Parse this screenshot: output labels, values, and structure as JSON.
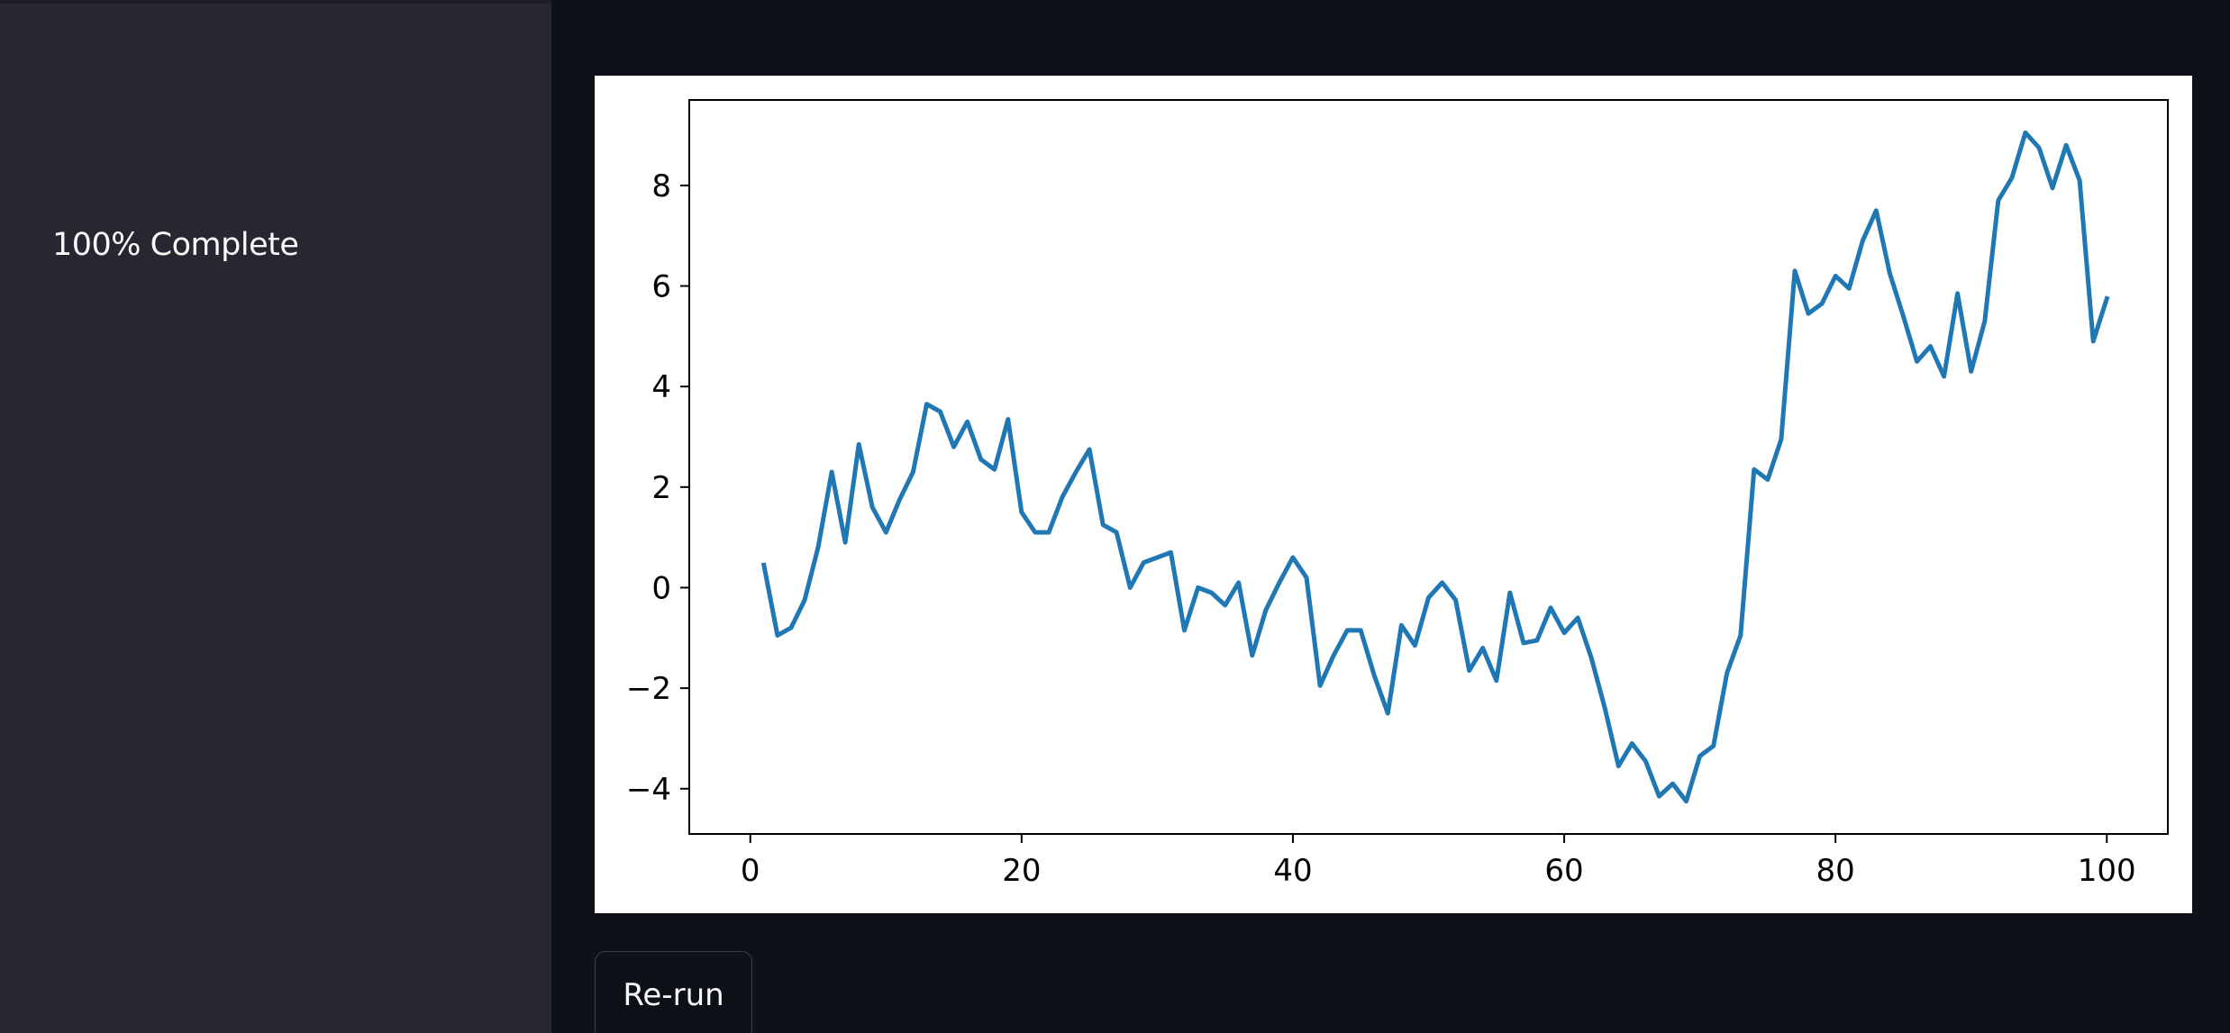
{
  "sidebar": {
    "status_text": "100% Complete"
  },
  "main": {
    "rerun_label": "Re-run"
  },
  "colors": {
    "app_background": "#0e1117",
    "sidebar_background": "#262730",
    "line_color": "#1f77b4"
  },
  "chart_data": {
    "type": "line",
    "title": "",
    "xlabel": "",
    "ylabel": "",
    "xlim": [
      -4.5,
      104.5
    ],
    "ylim": [
      -4.9,
      9.7
    ],
    "x_ticks": [
      0,
      20,
      40,
      60,
      80,
      100
    ],
    "x_tick_labels": [
      "0",
      "20",
      "40",
      "60",
      "80",
      "100"
    ],
    "y_ticks": [
      -4,
      -2,
      0,
      2,
      4,
      6,
      8
    ],
    "y_tick_labels": [
      "−4",
      "−2",
      "0",
      "2",
      "4",
      "6",
      "8"
    ],
    "grid": false,
    "series": [
      {
        "x": [
          1,
          2,
          3,
          4,
          5,
          6,
          7,
          8,
          9,
          10,
          11,
          12,
          13,
          14,
          15,
          16,
          17,
          18,
          19,
          20,
          21,
          22,
          23,
          24,
          25,
          26,
          27,
          28,
          29,
          30,
          31,
          32,
          33,
          34,
          35,
          36,
          37,
          38,
          39,
          40,
          41,
          42,
          43,
          44,
          45,
          46,
          47,
          48,
          49,
          50,
          51,
          52,
          53,
          54,
          55,
          56,
          57,
          58,
          59,
          60,
          61,
          62,
          63,
          64,
          65,
          66,
          67,
          68,
          69,
          70,
          71,
          72,
          73,
          74,
          75,
          76,
          77,
          78,
          79,
          80,
          81,
          82,
          83,
          84,
          85,
          86,
          87,
          88,
          89,
          90,
          91,
          92,
          93,
          94,
          95,
          96,
          97,
          98,
          99,
          100
        ],
        "values": [
          0.45,
          -0.95,
          -0.8,
          -0.25,
          0.8,
          2.3,
          0.9,
          2.85,
          1.6,
          1.1,
          1.75,
          2.3,
          3.65,
          3.5,
          2.8,
          3.3,
          2.55,
          2.35,
          3.35,
          1.5,
          1.1,
          1.1,
          1.8,
          2.3,
          2.75,
          1.25,
          1.1,
          0.0,
          0.5,
          0.6,
          0.7,
          -0.85,
          0.0,
          -0.1,
          -0.35,
          0.1,
          -1.35,
          -0.45,
          0.1,
          0.6,
          0.2,
          -1.95,
          -1.35,
          -0.85,
          -0.85,
          -1.75,
          -2.5,
          -0.75,
          -1.15,
          -0.2,
          0.1,
          -0.25,
          -1.65,
          -1.2,
          -1.85,
          -0.1,
          -1.1,
          -1.05,
          -0.4,
          -0.9,
          -0.6,
          -1.4,
          -2.4,
          -3.55,
          -3.1,
          -3.45,
          -4.15,
          -3.9,
          -4.25,
          -3.35,
          -3.15,
          -1.7,
          -0.95,
          2.35,
          2.15,
          2.95,
          6.3,
          5.45,
          5.65,
          6.2,
          5.95,
          6.9,
          7.5,
          6.25,
          5.4,
          4.5,
          4.8,
          4.2,
          5.85,
          4.3,
          5.3,
          7.7,
          8.15,
          9.05,
          8.75,
          7.95,
          8.8,
          8.1,
          4.9,
          5.75
        ]
      }
    ]
  }
}
